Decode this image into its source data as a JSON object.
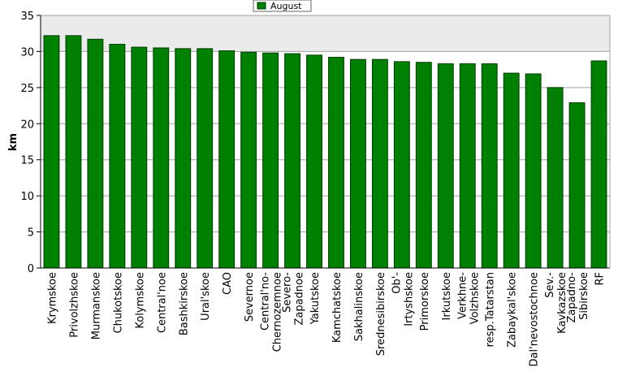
{
  "chart_data": {
    "type": "bar",
    "title": "",
    "xlabel": "",
    "ylabel": "km",
    "ylim": [
      0,
      35
    ],
    "yticks": [
      0,
      5,
      10,
      15,
      20,
      25,
      30,
      35
    ],
    "grid": true,
    "legend_position": "top-center",
    "categories": [
      "Krymskoe",
      "Privolzhskoe",
      "Murmanskoe",
      "Chukotskoe",
      "Kolymskoe",
      "Central'noe",
      "Bashkirskoe",
      "Ural'skoe",
      "CAO",
      "Severnoe",
      "Central'no-Chernozemnoe",
      "Severo-Zapadnoe",
      "Yakutskoe",
      "Kamchatskoe",
      "Sakhalinskoe",
      "Srednesibirskoe",
      "Ob'-Irtyshskoe",
      "Primorskoe",
      "Irkutskoe",
      "Verkhne-Volzhskoe",
      "resp.Tatarstan",
      "Zabaykal'skoe",
      "Dal'nevostochnoe",
      "Sev.-Kavkazskoe",
      "Zapadno-Sibirskoe",
      "RF"
    ],
    "category_lines": [
      [
        "Krymskoe"
      ],
      [
        "Privolzhskoe"
      ],
      [
        "Murmanskoe"
      ],
      [
        "Chukotskoe"
      ],
      [
        "Kolymskoe"
      ],
      [
        "Central'noe"
      ],
      [
        "Bashkirskoe"
      ],
      [
        "Ural'skoe"
      ],
      [
        "CAO"
      ],
      [
        "Severnoe"
      ],
      [
        "Central'no-",
        "Chernozemnoe"
      ],
      [
        "Severo-",
        "Zapadnoe"
      ],
      [
        "Yakutskoe"
      ],
      [
        "Kamchatskoe"
      ],
      [
        "Sakhalinskoe"
      ],
      [
        "Srednesibirskoe"
      ],
      [
        "Ob'-",
        "Irtyshskoe"
      ],
      [
        "Primorskoe"
      ],
      [
        "Irkutskoe"
      ],
      [
        "Verkhne-",
        "Volzhskoe"
      ],
      [
        "resp.Tatarstan"
      ],
      [
        "Zabaykal'skoe"
      ],
      [
        "Dal'nevostochnoe"
      ],
      [
        "Sev.-",
        "Kavkazskoe"
      ],
      [
        "Zapadno-",
        "Sibirskoe"
      ],
      [
        "RF"
      ]
    ],
    "series": [
      {
        "name": "August",
        "values": [
          32.2,
          32.2,
          31.7,
          31.0,
          30.6,
          30.5,
          30.4,
          30.4,
          30.1,
          29.9,
          29.8,
          29.7,
          29.5,
          29.2,
          28.9,
          28.9,
          28.6,
          28.5,
          28.3,
          28.3,
          28.3,
          27.0,
          26.9,
          25.0,
          22.9,
          28.7
        ]
      }
    ],
    "colors": {
      "bar": "#008000",
      "bar_border": "#003c00",
      "plot_background": "#ffffff",
      "upper_band": "#ebebeb",
      "grid": "#a0a0a0",
      "axis": "#000000"
    }
  }
}
